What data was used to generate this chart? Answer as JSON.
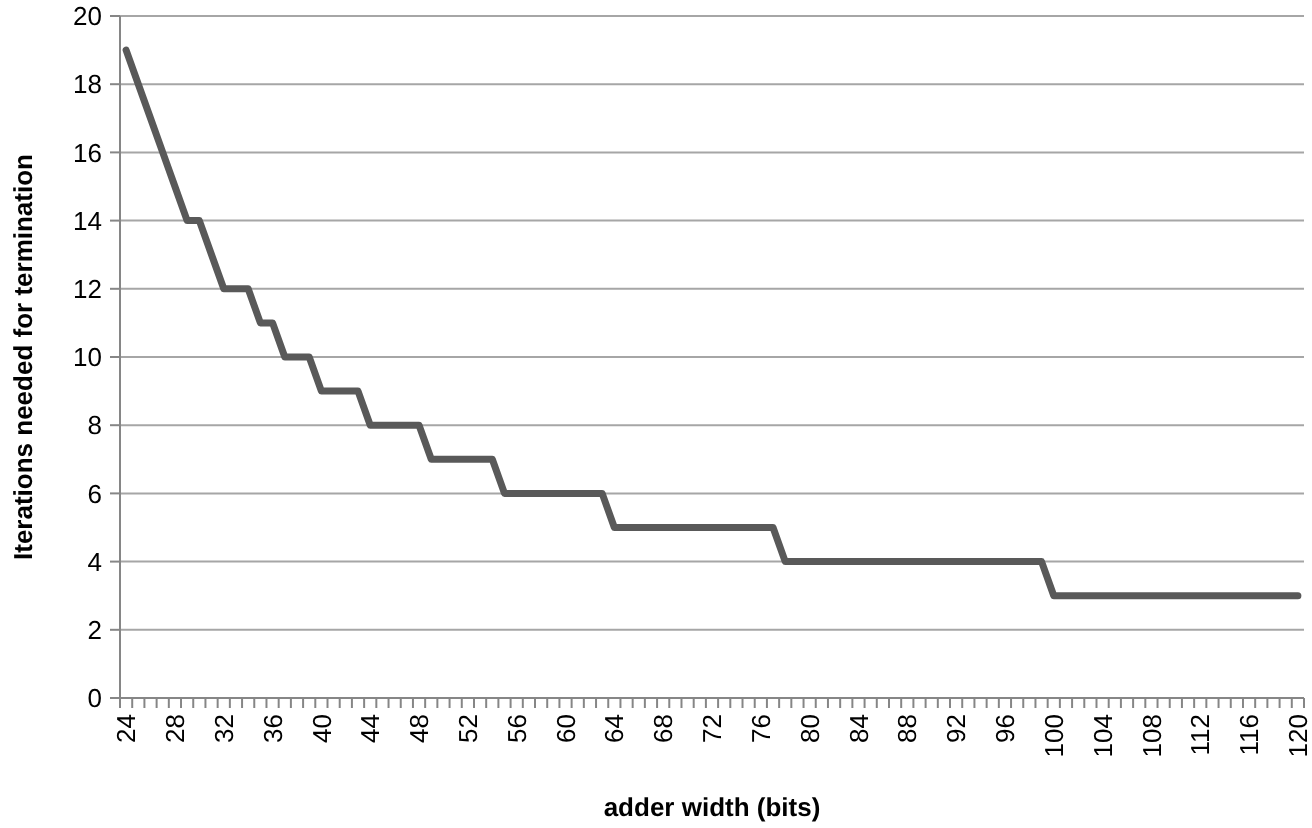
{
  "chart_data": {
    "type": "line",
    "xlabel": "adder width (bits)",
    "ylabel": "Iterations needed for termination",
    "categories": [
      "24",
      null,
      null,
      null,
      "28",
      null,
      null,
      null,
      "32",
      null,
      null,
      null,
      "36",
      null,
      null,
      null,
      "40",
      null,
      null,
      null,
      "44",
      null,
      null,
      null,
      "48",
      null,
      null,
      null,
      "52",
      null,
      null,
      null,
      "56",
      null,
      null,
      null,
      "60",
      null,
      null,
      null,
      "64",
      null,
      null,
      null,
      "68",
      null,
      null,
      null,
      "72",
      null,
      null,
      null,
      "76",
      null,
      null,
      null,
      "80",
      null,
      null,
      null,
      "84",
      null,
      null,
      null,
      "88",
      null,
      null,
      null,
      "92",
      null,
      null,
      null,
      "96",
      null,
      null,
      null,
      "100",
      null,
      null,
      null,
      "104",
      null,
      null,
      null,
      "108",
      null,
      null,
      null,
      "112",
      null,
      null,
      null,
      "116",
      null,
      null,
      null,
      "120"
    ],
    "series": [
      {
        "color": "#595959",
        "values": [
          19,
          18,
          17,
          16,
          15,
          14,
          14,
          13,
          12,
          12,
          12,
          11,
          11,
          10,
          10,
          10,
          9,
          9,
          9,
          9,
          8,
          8,
          8,
          8,
          8,
          7,
          7,
          7,
          7,
          7,
          7,
          6,
          6,
          6,
          6,
          6,
          6,
          6,
          6,
          6,
          5,
          5,
          5,
          5,
          5,
          5,
          5,
          5,
          5,
          5,
          5,
          5,
          5,
          5,
          4,
          4,
          4,
          4,
          4,
          4,
          4,
          4,
          4,
          4,
          4,
          4,
          4,
          4,
          4,
          4,
          4,
          4,
          4,
          4,
          4,
          4,
          3,
          3,
          3,
          3,
          3,
          3,
          3,
          3,
          3,
          3,
          3,
          3,
          3,
          3,
          3,
          3,
          3,
          3,
          3,
          3,
          3
        ]
      }
    ],
    "ylim": [
      0,
      20
    ],
    "yticks": [
      0,
      2,
      4,
      6,
      8,
      10,
      12,
      14,
      16,
      18,
      20
    ],
    "grid": "y",
    "marker": "none",
    "line_style": "solid"
  }
}
